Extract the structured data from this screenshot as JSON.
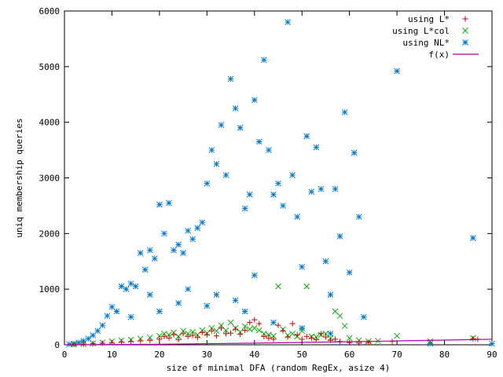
{
  "chart_data": {
    "type": "scatter",
    "title": "",
    "xlabel": "size of minimal DFA (random RegEx, asize 4)",
    "ylabel": "uniq membership queries",
    "xlim": [
      0,
      90
    ],
    "ylim": [
      0,
      6000
    ],
    "xticks": [
      0,
      10,
      20,
      30,
      40,
      50,
      60,
      70,
      80,
      90
    ],
    "yticks": [
      0,
      1000,
      2000,
      3000,
      4000,
      5000,
      6000
    ],
    "grid": false,
    "legend_position": "top-right",
    "series": [
      {
        "name": "using L*",
        "marker": "plus",
        "color": "#cc0000",
        "points": [
          [
            2,
            5
          ],
          [
            4,
            10
          ],
          [
            6,
            20
          ],
          [
            8,
            30
          ],
          [
            10,
            40
          ],
          [
            12,
            50
          ],
          [
            14,
            60
          ],
          [
            16,
            70
          ],
          [
            18,
            80
          ],
          [
            20,
            100
          ],
          [
            21,
            150
          ],
          [
            22,
            120
          ],
          [
            23,
            180
          ],
          [
            24,
            90
          ],
          [
            25,
            200
          ],
          [
            26,
            150
          ],
          [
            27,
            170
          ],
          [
            28,
            130
          ],
          [
            29,
            220
          ],
          [
            30,
            180
          ],
          [
            31,
            250
          ],
          [
            32,
            160
          ],
          [
            33,
            300
          ],
          [
            34,
            200
          ],
          [
            35,
            210
          ],
          [
            36,
            280
          ],
          [
            37,
            190
          ],
          [
            38,
            260
          ],
          [
            39,
            400
          ],
          [
            40,
            450
          ],
          [
            41,
            380
          ],
          [
            42,
            150
          ],
          [
            43,
            120
          ],
          [
            44,
            100
          ],
          [
            45,
            350
          ],
          [
            46,
            250
          ],
          [
            47,
            140
          ],
          [
            48,
            380
          ],
          [
            49,
            180
          ],
          [
            50,
            100
          ],
          [
            51,
            150
          ],
          [
            52,
            120
          ],
          [
            53,
            90
          ],
          [
            54,
            200
          ],
          [
            55,
            140
          ],
          [
            56,
            80
          ],
          [
            57,
            100
          ],
          [
            58,
            60
          ],
          [
            60,
            40
          ],
          [
            62,
            30
          ],
          [
            64,
            40
          ],
          [
            69,
            60
          ],
          [
            86,
            110
          ],
          [
            87,
            100
          ]
        ]
      },
      {
        "name": "using L*col",
        "marker": "cross",
        "color": "#00aa00",
        "points": [
          [
            2,
            5
          ],
          [
            4,
            15
          ],
          [
            6,
            25
          ],
          [
            8,
            40
          ],
          [
            10,
            60
          ],
          [
            12,
            80
          ],
          [
            14,
            90
          ],
          [
            16,
            110
          ],
          [
            18,
            130
          ],
          [
            20,
            160
          ],
          [
            21,
            200
          ],
          [
            22,
            180
          ],
          [
            23,
            220
          ],
          [
            24,
            150
          ],
          [
            25,
            250
          ],
          [
            26,
            200
          ],
          [
            27,
            230
          ],
          [
            28,
            180
          ],
          [
            29,
            260
          ],
          [
            30,
            210
          ],
          [
            31,
            300
          ],
          [
            32,
            250
          ],
          [
            33,
            350
          ],
          [
            34,
            260
          ],
          [
            35,
            400
          ],
          [
            36,
            300
          ],
          [
            37,
            230
          ],
          [
            38,
            330
          ],
          [
            39,
            280
          ],
          [
            40,
            300
          ],
          [
            41,
            260
          ],
          [
            42,
            200
          ],
          [
            43,
            180
          ],
          [
            44,
            160
          ],
          [
            45,
            1050
          ],
          [
            46,
            280
          ],
          [
            47,
            170
          ],
          [
            48,
            200
          ],
          [
            49,
            150
          ],
          [
            50,
            250
          ],
          [
            51,
            1050
          ],
          [
            52,
            150
          ],
          [
            53,
            140
          ],
          [
            54,
            180
          ],
          [
            55,
            200
          ],
          [
            56,
            120
          ],
          [
            57,
            600
          ],
          [
            58,
            520
          ],
          [
            59,
            340
          ],
          [
            60,
            120
          ],
          [
            62,
            80
          ],
          [
            64,
            60
          ],
          [
            66,
            70
          ],
          [
            70,
            160
          ],
          [
            77,
            60
          ],
          [
            86,
            120
          ]
        ]
      },
      {
        "name": "using NL*",
        "marker": "star",
        "color": "#0077cc",
        "points": [
          [
            1,
            10
          ],
          [
            2,
            20
          ],
          [
            3,
            40
          ],
          [
            4,
            70
          ],
          [
            5,
            110
          ],
          [
            6,
            170
          ],
          [
            7,
            250
          ],
          [
            8,
            350
          ],
          [
            9,
            520
          ],
          [
            10,
            680
          ],
          [
            11,
            600
          ],
          [
            12,
            1050
          ],
          [
            13,
            1000
          ],
          [
            14,
            1100
          ],
          [
            15,
            1050
          ],
          [
            16,
            1650
          ],
          [
            17,
            1350
          ],
          [
            18,
            1700
          ],
          [
            19,
            1550
          ],
          [
            20,
            2520
          ],
          [
            21,
            2000
          ],
          [
            22,
            2550
          ],
          [
            23,
            1700
          ],
          [
            24,
            1800
          ],
          [
            25,
            1650
          ],
          [
            26,
            2050
          ],
          [
            27,
            1900
          ],
          [
            28,
            2100
          ],
          [
            29,
            2200
          ],
          [
            30,
            2900
          ],
          [
            31,
            3500
          ],
          [
            32,
            3250
          ],
          [
            33,
            3950
          ],
          [
            34,
            3050
          ],
          [
            35,
            4780
          ],
          [
            36,
            4250
          ],
          [
            37,
            3900
          ],
          [
            38,
            2450
          ],
          [
            39,
            2700
          ],
          [
            40,
            4400
          ],
          [
            41,
            3650
          ],
          [
            42,
            5120
          ],
          [
            43,
            3500
          ],
          [
            44,
            2700
          ],
          [
            45,
            2900
          ],
          [
            46,
            2500
          ],
          [
            47,
            5800
          ],
          [
            48,
            3050
          ],
          [
            49,
            2300
          ],
          [
            50,
            1400
          ],
          [
            51,
            3750
          ],
          [
            52,
            2750
          ],
          [
            53,
            3550
          ],
          [
            54,
            2800
          ],
          [
            55,
            1500
          ],
          [
            56,
            900
          ],
          [
            57,
            2800
          ],
          [
            58,
            1950
          ],
          [
            59,
            4180
          ],
          [
            60,
            1300
          ],
          [
            61,
            3450
          ],
          [
            62,
            2300
          ],
          [
            63,
            500
          ],
          [
            70,
            4920
          ],
          [
            86,
            1920
          ],
          [
            90,
            20
          ],
          [
            77,
            20
          ],
          [
            40,
            1250
          ],
          [
            36,
            800
          ],
          [
            30,
            700
          ],
          [
            24,
            750
          ],
          [
            18,
            900
          ],
          [
            20,
            600
          ],
          [
            14,
            500
          ],
          [
            26,
            1000
          ],
          [
            32,
            900
          ],
          [
            38,
            600
          ],
          [
            44,
            400
          ],
          [
            50,
            300
          ],
          [
            56,
            200
          ]
        ]
      },
      {
        "name": "f(x)",
        "marker": "line",
        "color": "#aa00aa",
        "points": [
          [
            0,
            0
          ],
          [
            20,
            10
          ],
          [
            40,
            30
          ],
          [
            60,
            55
          ],
          [
            70,
            70
          ],
          [
            80,
            85
          ],
          [
            90,
            100
          ]
        ]
      }
    ]
  }
}
